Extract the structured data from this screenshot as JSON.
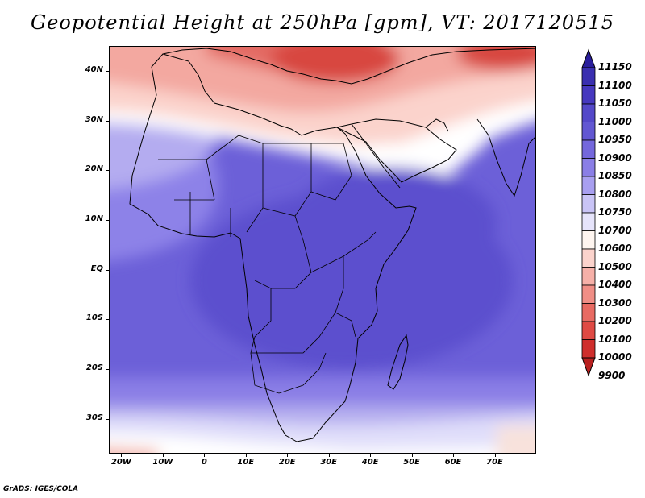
{
  "title": "Geopotential Height at 250hPa [gpm], VT: 2017120515",
  "footer": "GrADS: IGES/COLA",
  "map": {
    "variable": "Geopotential Height",
    "level": "250hPa",
    "units": "gpm",
    "valid_time": "2017120515",
    "lon_range": [
      -23,
      80
    ],
    "lat_range": [
      -37,
      45
    ],
    "lat_ticks": [
      {
        "value": 40,
        "label": "40N"
      },
      {
        "value": 30,
        "label": "30N"
      },
      {
        "value": 20,
        "label": "20N"
      },
      {
        "value": 10,
        "label": "10N"
      },
      {
        "value": 0,
        "label": "EQ"
      },
      {
        "value": -10,
        "label": "10S"
      },
      {
        "value": -20,
        "label": "20S"
      },
      {
        "value": -30,
        "label": "30S"
      }
    ],
    "lon_ticks": [
      {
        "value": -20,
        "label": "20W"
      },
      {
        "value": -10,
        "label": "10W"
      },
      {
        "value": 0,
        "label": "0"
      },
      {
        "value": 10,
        "label": "10E"
      },
      {
        "value": 20,
        "label": "20E"
      },
      {
        "value": 30,
        "label": "30E"
      },
      {
        "value": 40,
        "label": "40E"
      },
      {
        "value": 50,
        "label": "50E"
      },
      {
        "value": 60,
        "label": "60E"
      },
      {
        "value": 70,
        "label": "70E"
      }
    ]
  },
  "colorbar": {
    "labels": [
      "11150",
      "11100",
      "11050",
      "11000",
      "10950",
      "10900",
      "10850",
      "10800",
      "10750",
      "10700",
      "10600",
      "10500",
      "10400",
      "10300",
      "10200",
      "10100",
      "10000",
      "9900"
    ],
    "colors": [
      "#2a1e9c",
      "#3a2fb0",
      "#4638bf",
      "#5448c9",
      "#6257d2",
      "#7467dc",
      "#8a7ee6",
      "#a89ff0",
      "#c9c4f6",
      "#e6e4fb",
      "#fff6f0",
      "#fbd3cc",
      "#f6b0a8",
      "#f08e86",
      "#e86a62",
      "#df4a44",
      "#cf2e2c",
      "#b8201f"
    ]
  }
}
